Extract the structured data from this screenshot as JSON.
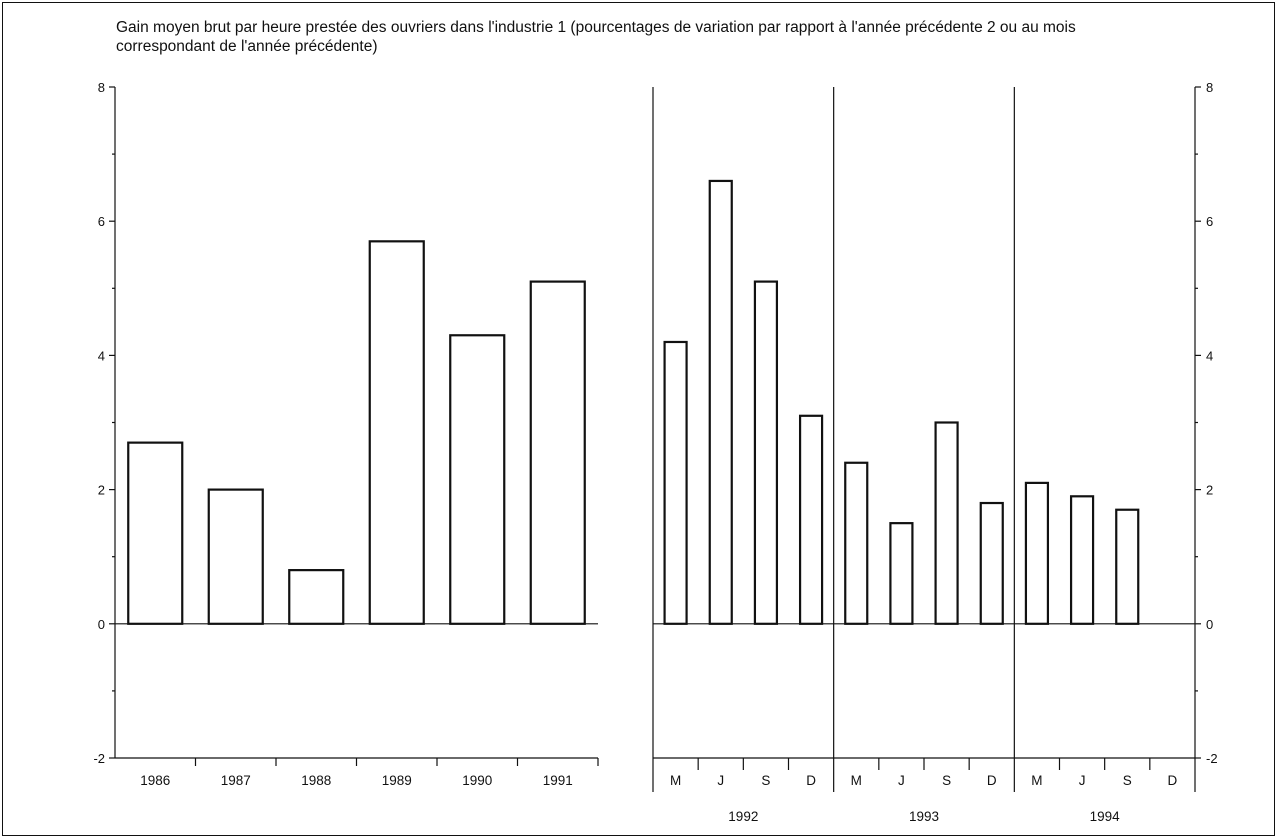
{
  "chart_data": {
    "type": "bar",
    "title": "Gain moyen brut par heure prestée des ouvriers dans l'industrie 1  (pourcentages de variation par rapport à l'année précédente 2 ou au mois correspondant de l'année précédente)",
    "ylim": [
      -2,
      8
    ],
    "yticks": [
      "8",
      "6",
      "4",
      "2",
      "0",
      "-2"
    ],
    "grid": false,
    "panels": [
      {
        "name": "annual",
        "categories": [
          "1986",
          "1987",
          "1988",
          "1989",
          "1990",
          "1991"
        ],
        "values": [
          2.7,
          2.0,
          0.8,
          5.7,
          4.3,
          5.1
        ]
      },
      {
        "name": "monthly",
        "categories": [
          "M",
          "J",
          "S",
          "D",
          "M",
          "J",
          "S",
          "D",
          "M",
          "J",
          "S",
          "D"
        ],
        "groups": [
          "1992",
          "1993",
          "1994"
        ],
        "values": [
          4.2,
          6.6,
          5.1,
          3.1,
          2.4,
          1.5,
          3.0,
          1.8,
          2.1,
          1.9,
          1.7,
          null
        ]
      }
    ]
  }
}
